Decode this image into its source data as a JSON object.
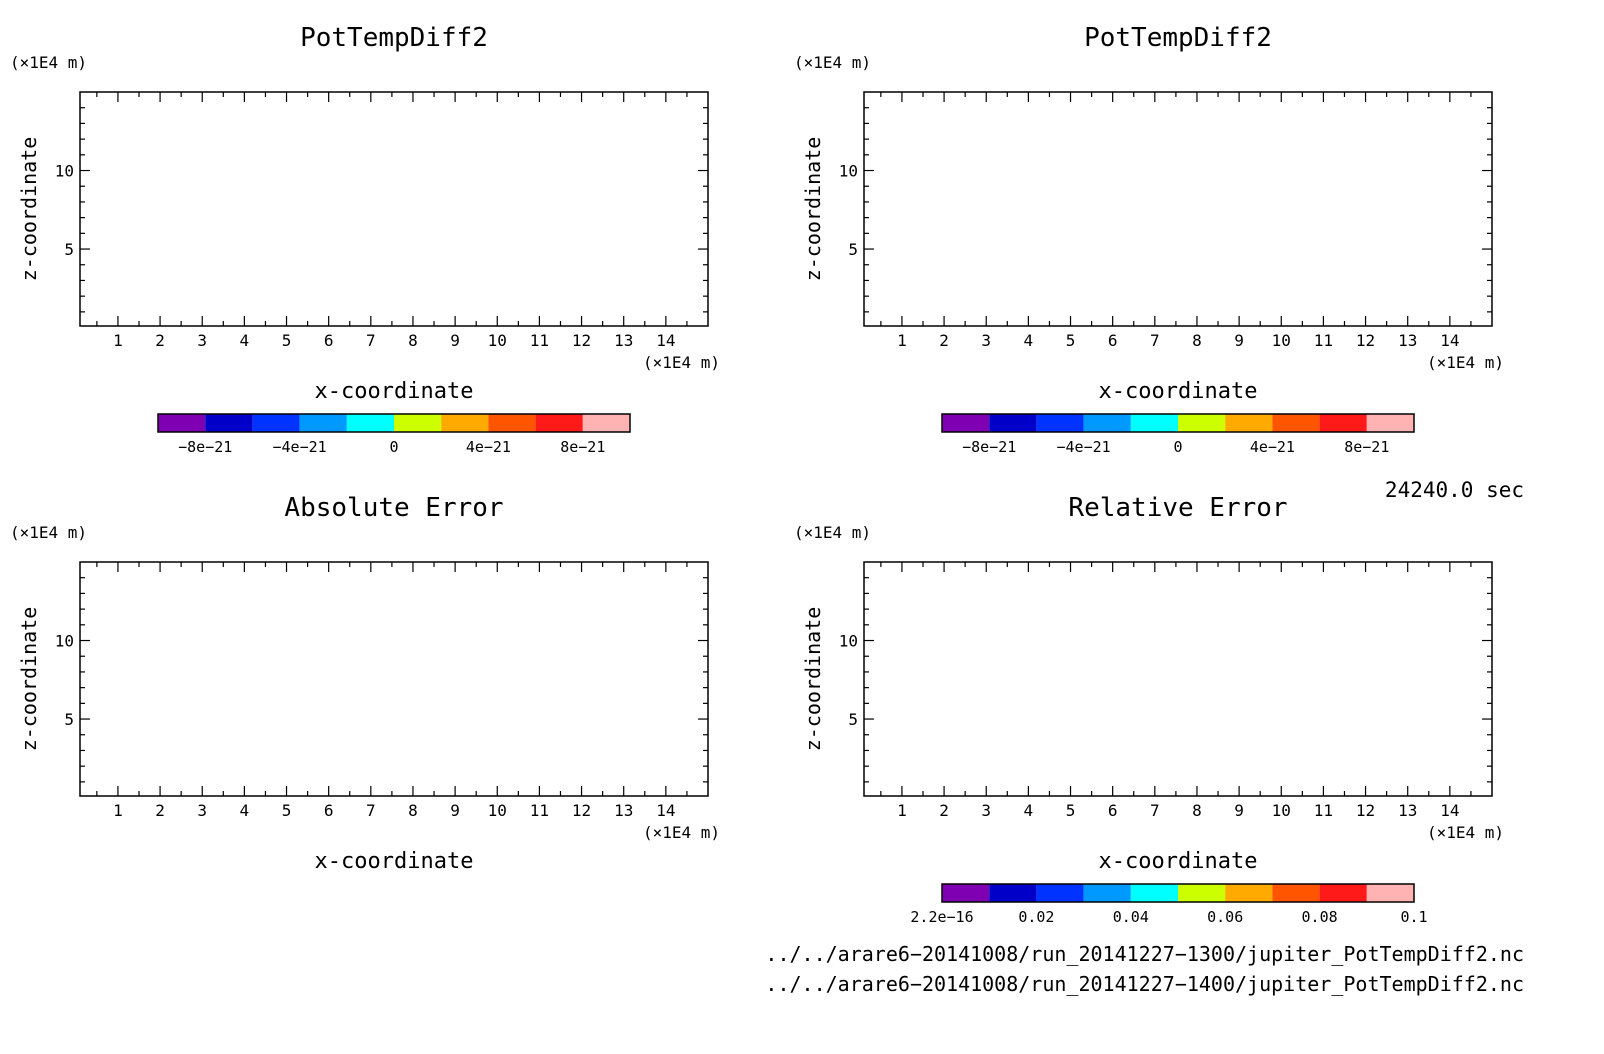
{
  "chart_data": [
    {
      "type": "heatmap",
      "title": "PotTempDiff2",
      "xlabel": "x-coordinate",
      "ylabel": "z-coordinate",
      "x_unit": "(×1E4 m)",
      "y_unit": "(×1E4 m)",
      "xlim": [
        0.1,
        15
      ],
      "ylim": [
        0.1,
        15
      ],
      "x_ticks": [
        1,
        2,
        3,
        4,
        5,
        6,
        7,
        8,
        9,
        10,
        11,
        12,
        13,
        14
      ],
      "y_ticks": [
        5,
        10
      ],
      "colorbar": {
        "range": [
          -1e-20,
          1e-20
        ],
        "colors": [
          "#7F00B2",
          "#0000C8",
          "#0033FF",
          "#0099FF",
          "#00FFFF",
          "#CCFF00",
          "#FFAA00",
          "#FF5500",
          "#FF1A1A",
          "#FFB3B3"
        ],
        "tick_values": [
          -8e-21,
          -4e-21,
          0,
          4e-21,
          8e-21
        ],
        "tick_labels": [
          "−8e−21",
          "−4e−21",
          "0",
          "4e−21",
          "8e−21"
        ]
      }
    },
    {
      "type": "heatmap",
      "title": "PotTempDiff2",
      "xlabel": "x-coordinate",
      "ylabel": "z-coordinate",
      "x_unit": "(×1E4 m)",
      "y_unit": "(×1E4 m)",
      "xlim": [
        0.1,
        15
      ],
      "ylim": [
        0.1,
        15
      ],
      "x_ticks": [
        1,
        2,
        3,
        4,
        5,
        6,
        7,
        8,
        9,
        10,
        11,
        12,
        13,
        14
      ],
      "y_ticks": [
        5,
        10
      ],
      "colorbar": {
        "range": [
          -1e-20,
          1e-20
        ],
        "colors": [
          "#7F00B2",
          "#0000C8",
          "#0033FF",
          "#0099FF",
          "#00FFFF",
          "#CCFF00",
          "#FFAA00",
          "#FF5500",
          "#FF1A1A",
          "#FFB3B3"
        ],
        "tick_values": [
          -8e-21,
          -4e-21,
          0,
          4e-21,
          8e-21
        ],
        "tick_labels": [
          "−8e−21",
          "−4e−21",
          "0",
          "4e−21",
          "8e−21"
        ]
      }
    },
    {
      "type": "heatmap",
      "title": "Absolute Error",
      "xlabel": "x-coordinate",
      "ylabel": "z-coordinate",
      "x_unit": "(×1E4 m)",
      "y_unit": "(×1E4 m)",
      "xlim": [
        0.1,
        15
      ],
      "ylim": [
        0.1,
        15
      ],
      "x_ticks": [
        1,
        2,
        3,
        4,
        5,
        6,
        7,
        8,
        9,
        10,
        11,
        12,
        13,
        14
      ],
      "y_ticks": [
        5,
        10
      ]
    },
    {
      "type": "heatmap",
      "title": "Relative Error",
      "xlabel": "x-coordinate",
      "ylabel": "z-coordinate",
      "x_unit": "(×1E4 m)",
      "y_unit": "(×1E4 m)",
      "xlim": [
        0.1,
        15
      ],
      "ylim": [
        0.1,
        15
      ],
      "x_ticks": [
        1,
        2,
        3,
        4,
        5,
        6,
        7,
        8,
        9,
        10,
        11,
        12,
        13,
        14
      ],
      "y_ticks": [
        5,
        10
      ],
      "colorbar": {
        "range": [
          2.2e-16,
          0.1
        ],
        "colors": [
          "#7F00B2",
          "#0000C8",
          "#0033FF",
          "#0099FF",
          "#00FFFF",
          "#CCFF00",
          "#FFAA00",
          "#FF5500",
          "#FF1A1A",
          "#FFB3B3"
        ],
        "tick_values": [
          2.2e-16,
          0.02,
          0.04,
          0.06,
          0.08,
          0.1
        ],
        "tick_labels": [
          "2.2e−16",
          "0.02",
          "0.04",
          "0.06",
          "0.08",
          "0.1"
        ]
      }
    }
  ],
  "time_label": "24240.0 sec",
  "file_paths": [
    "../../arare6−20141008/run_20141227−1300/jupiter_PotTempDiff2.nc",
    "../../arare6−20141008/run_20141227−1400/jupiter_PotTempDiff2.nc"
  ]
}
